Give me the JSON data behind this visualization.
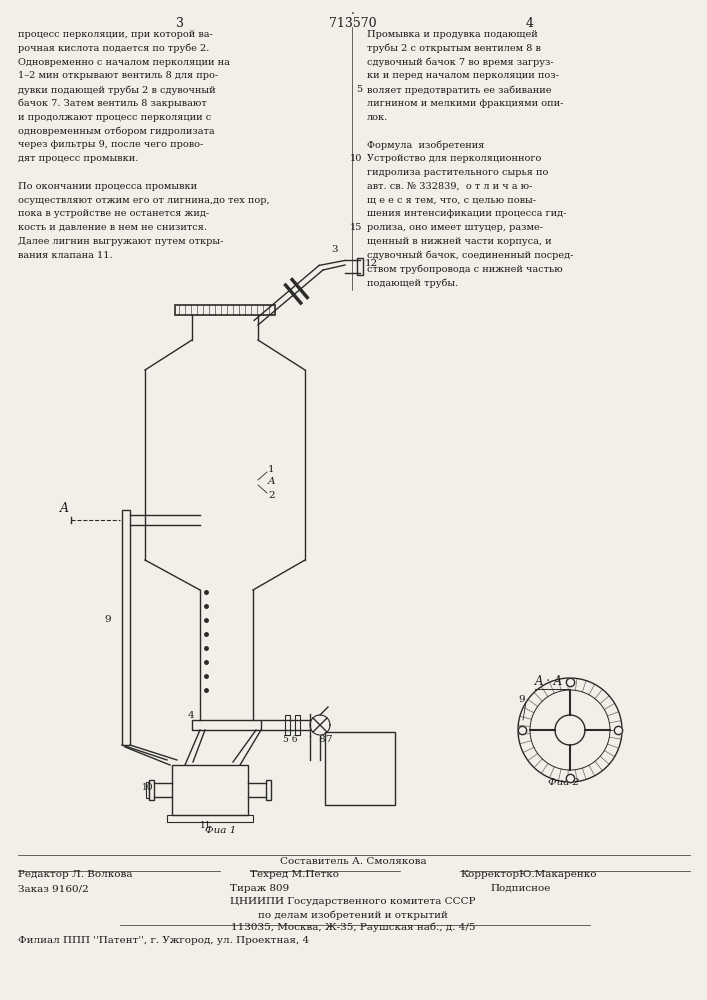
{
  "page_number_left": "3",
  "page_number_center": "713570",
  "page_number_right": "4",
  "left_column_text": [
    "процесс перколяции, при которой ва-",
    "рочная кислота подается по трубе 2.",
    "Одновременно с началом перколяции на",
    "1–2 мин открывают вентиль 8 для про-",
    "дувки подающей трубы 2 в сдувочный",
    "бачок 7. Затем вентиль 8 закрывают",
    "и продолжают процесс перколяции с",
    "одновременным отбором гидролизата",
    "через фильтры 9, после чего прово-",
    "дят процесс промывки.",
    "",
    "По окончании процесса промывки",
    "осуществляют отжим его от лигнина,до тех пор,",
    "пока в устройстве не останется жид-",
    "кость и давление в нем не снизится.",
    "Далее лигнин выгружают путем откры-",
    "вания клапана 11."
  ],
  "right_column_text": [
    "Промывка и продувка подающей",
    "трубы 2 с открытым вентилем 8 в",
    "сдувочный бачок 7 во время загруз-",
    "ки и перед началом перколяции поз-",
    "воляет предотвратить ее забивание",
    "лигнином и мелкими фракциями опи-",
    "лок.",
    "",
    "Формула  изобретения",
    "Устройство для перколяционного",
    "гидролиза растительного сырья по",
    "авт. св. № 332839,  о т л и ч а ю-",
    "щ е е с я тем, что, с целью повы-",
    "шения интенсификации процесса гид-",
    "ролиза, оно имеет штуцер, разме-",
    "щенный в нижней части корпуса, и",
    "сдувочный бачок, соединенный посред-",
    "ством трубопровода с нижней частью",
    "подающей трубы."
  ],
  "footer_top": "Составитель А. Смолякова",
  "footer_editor": "Редактор Л. Волкова",
  "footer_techred": "Техред М.Петко",
  "footer_corrector": "КорректорЮ.Макаренко",
  "footer_order": "Заказ 9160/2",
  "footer_tirazh": "Тираж 809",
  "footer_podpisnoe": "Подписное",
  "footer_org": "ЦНИИПИ Государственного комитета СССР",
  "footer_dept": "по делам изобретений и открытий",
  "footer_address": "113035, Москва, Ж-35, Раушская наб., д. 4/5",
  "footer_branch": "Филиал ППП ''Патент'', г. Ужгород, ул. Проектная, 4",
  "bg_color": "#f2efe8",
  "text_color": "#1a1a1a",
  "line_color": "#2a2a2a"
}
